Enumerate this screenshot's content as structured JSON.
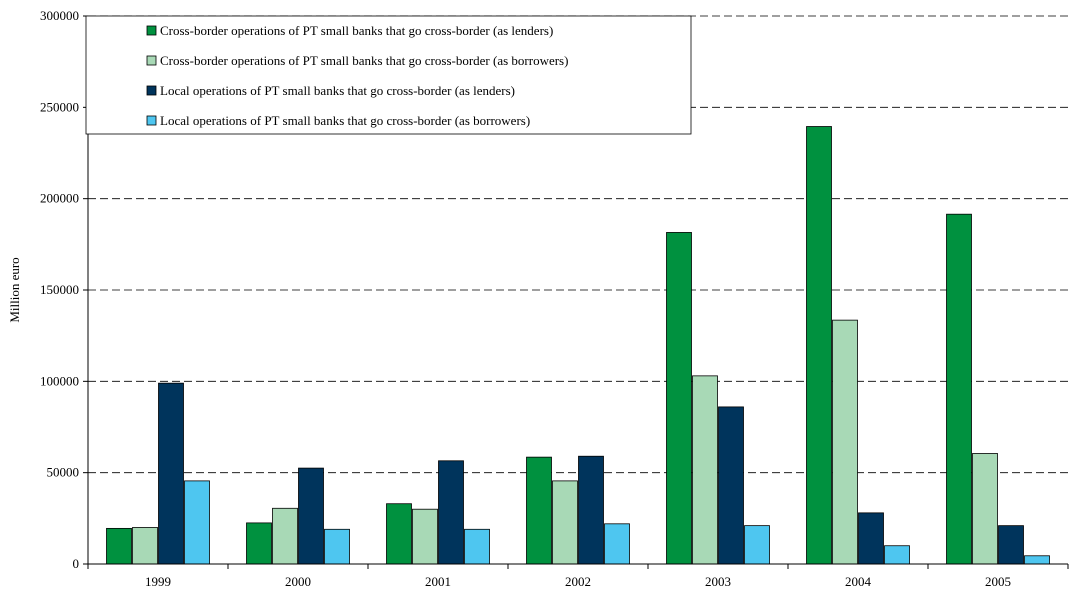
{
  "chart_data": {
    "type": "bar",
    "title": "",
    "xlabel": "",
    "ylabel": "Million euro",
    "ylim": [
      0,
      300000
    ],
    "yticks": [
      0,
      50000,
      100000,
      150000,
      200000,
      250000,
      300000
    ],
    "grid": true,
    "legend_position": "top-left",
    "categories": [
      "1999",
      "2000",
      "2001",
      "2002",
      "2003",
      "2004",
      "2005"
    ],
    "series": [
      {
        "name": "Cross-border operations of PT small banks that go cross-border (as lenders)",
        "color": "#00913f",
        "values": [
          19500,
          22500,
          33000,
          58500,
          181500,
          239500,
          191500
        ]
      },
      {
        "name": "Cross-border operations of PT small banks that go cross-border (as borrowers)",
        "color": "#a8d9b6",
        "values": [
          20000,
          30500,
          30000,
          45500,
          103000,
          133500,
          60500
        ]
      },
      {
        "name": "Local operations of PT small banks that go cross-border (as lenders)",
        "color": "#00345c",
        "values": [
          99000,
          52500,
          56500,
          59000,
          86000,
          28000,
          21000
        ]
      },
      {
        "name": "Local operations of PT small banks that go cross-border (as borrowers)",
        "color": "#4ec6f0",
        "values": [
          45500,
          19000,
          19000,
          22000,
          21000,
          10000,
          4500
        ]
      }
    ]
  }
}
